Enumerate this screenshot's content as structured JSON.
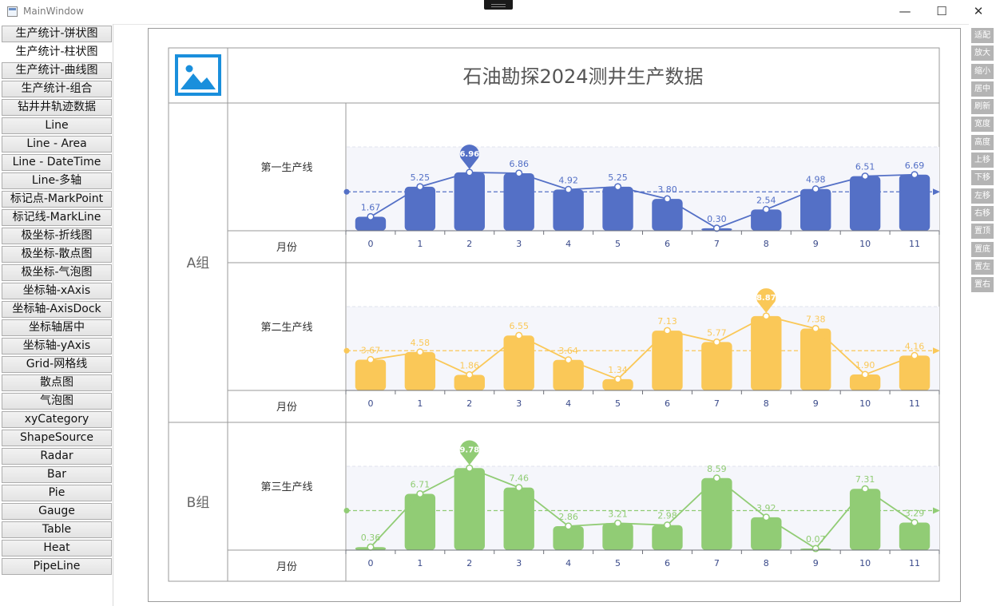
{
  "window": {
    "title": "MainWindow",
    "minimize": "—",
    "maximize": "☐",
    "close": "✕"
  },
  "sidebar": {
    "active_index": 1,
    "items": [
      "生产统计-饼状图",
      "生产统计-柱状图",
      "生产统计-曲线图",
      "生产统计-组合",
      "钻井井轨迹数据",
      "Line",
      "Line - Area",
      "Line - DateTime",
      "Line-多轴",
      "标记点-MarkPoint",
      "标记线-MarkLine",
      "极坐标-折线图",
      "极坐标-散点图",
      "极坐标-气泡图",
      "坐标轴-xAxis",
      "坐标轴-AxisDock",
      "坐标轴居中",
      "坐标轴-yAxis",
      "Grid-网格线",
      "散点图",
      "气泡图",
      "xyCategory",
      "ShapeSource",
      "Radar",
      "Bar",
      "Pie",
      "Gauge",
      "Table",
      "Heat",
      "PipeLine"
    ]
  },
  "tools": [
    "适配",
    "放大",
    "缩小",
    "居中",
    "刷新",
    "宽度",
    "高度",
    "上移",
    "下移",
    "左移",
    "右移",
    "置顶",
    "置底",
    "置左",
    "置右"
  ],
  "report": {
    "title": "石油勘探2024测井生产数据",
    "logo_icon": "image-icon",
    "groups": [
      {
        "label": "A组",
        "rows": [
          0,
          1
        ]
      },
      {
        "label": "B组",
        "rows": [
          2
        ]
      }
    ],
    "axis_label": "月份"
  },
  "chart_data": {
    "type": "bar",
    "categories": [
      "0",
      "1",
      "2",
      "3",
      "4",
      "5",
      "6",
      "7",
      "8",
      "9",
      "10",
      "11"
    ],
    "series": [
      {
        "name": "第一生产线",
        "color": "#5470c6",
        "values": [
          1.67,
          5.25,
          6.96,
          6.86,
          4.92,
          5.25,
          3.8,
          0.3,
          2.54,
          4.98,
          6.51,
          6.69
        ],
        "max_index": 2
      },
      {
        "name": "第二生产线",
        "color": "#fac858",
        "values": [
          3.67,
          4.58,
          1.86,
          6.55,
          3.64,
          1.34,
          7.13,
          5.77,
          8.87,
          7.38,
          1.9,
          4.16
        ],
        "max_index": 8
      },
      {
        "name": "第三生产线",
        "color": "#91cc75",
        "values": [
          0.36,
          6.71,
          9.78,
          7.46,
          2.86,
          3.21,
          2.98,
          8.59,
          3.92,
          0.07,
          7.31,
          3.29
        ],
        "max_index": 2
      }
    ],
    "overlay": "line",
    "mark_point": "max",
    "mark_line": "average",
    "xlabel": "月份"
  }
}
